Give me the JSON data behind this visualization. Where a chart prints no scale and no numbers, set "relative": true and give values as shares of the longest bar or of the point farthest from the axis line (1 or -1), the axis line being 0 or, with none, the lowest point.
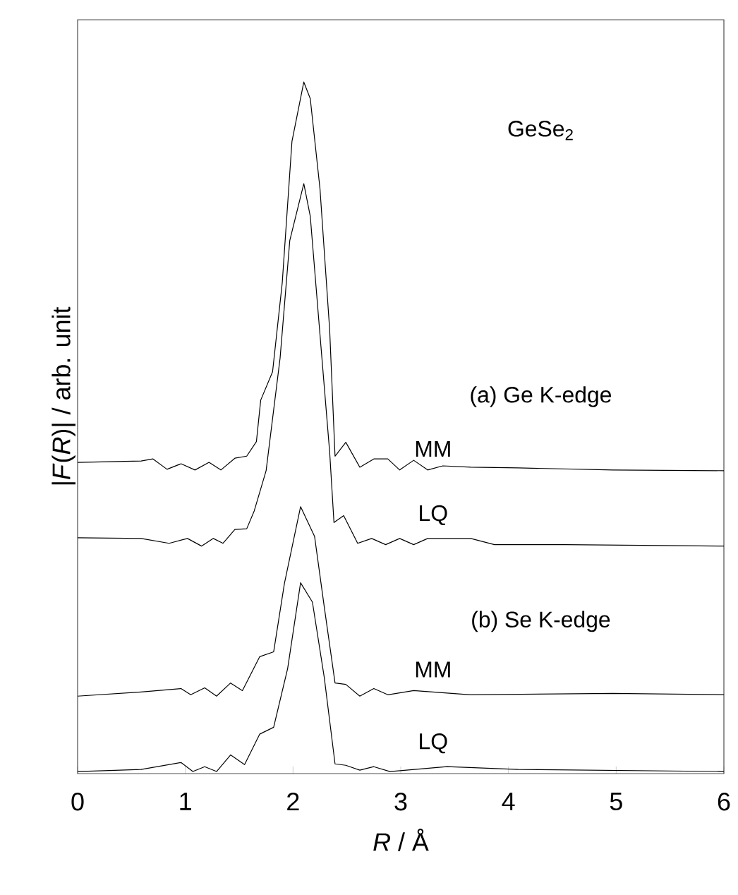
{
  "chart_data": {
    "type": "line",
    "relative": true,
    "xlabel": "*R* / Å",
    "ylabel": "|*F*(*R*)| / arb. unit",
    "xlim": [
      0,
      6
    ],
    "xticks": [
      0,
      1,
      2,
      3,
      4,
      5,
      6
    ],
    "marker": "none",
    "line_style": "solid",
    "annotations": [
      "GeSe$_{2}$",
      "(a) Ge K-edge",
      "(b) Se K-edge"
    ],
    "series": [
      {
        "name": "MM",
        "color": "#000000",
        "x": [
          0,
          0.59,
          0.7,
          0.83,
          0.96,
          1.09,
          1.22,
          1.33,
          1.46,
          1.57,
          1.66,
          1.7,
          1.81,
          1.9,
          1.99,
          2.1,
          2.16,
          2.25,
          2.34,
          2.39,
          2.49,
          2.62,
          2.75,
          2.88,
          2.99,
          3.12,
          3.25,
          3.39,
          3.65,
          4.09,
          4.97,
          6
        ],
        "values": [
          0.45,
          0.452,
          0.455,
          0.44,
          0.448,
          0.439,
          0.45,
          0.439,
          0.456,
          0.459,
          0.48,
          0.54,
          0.581,
          0.71,
          0.914,
          1,
          0.976,
          0.846,
          0.642,
          0.459,
          0.479,
          0.443,
          0.455,
          0.455,
          0.439,
          0.453,
          0.439,
          0.445,
          0.443,
          0.442,
          0.439,
          0.438
        ]
      },
      {
        "name": "LQ",
        "color": "#000000",
        "x": [
          0,
          0.59,
          0.85,
          1.02,
          1.15,
          1.26,
          1.35,
          1.46,
          1.57,
          1.64,
          1.75,
          1.88,
          1.97,
          2.1,
          2.16,
          2.25,
          2.34,
          2.38,
          2.47,
          2.6,
          2.73,
          2.86,
          2.99,
          3.12,
          3.25,
          3.65,
          3.87,
          4.53,
          6
        ],
        "values": [
          0.341,
          0.34,
          0.333,
          0.34,
          0.329,
          0.34,
          0.333,
          0.353,
          0.354,
          0.38,
          0.438,
          0.601,
          0.771,
          0.853,
          0.806,
          0.635,
          0.465,
          0.363,
          0.373,
          0.333,
          0.34,
          0.331,
          0.34,
          0.331,
          0.34,
          0.34,
          0.331,
          0.331,
          0.329
        ]
      },
      {
        "name": "MM",
        "color": "#000000",
        "x": [
          0,
          0.59,
          0.96,
          1.05,
          1.18,
          1.29,
          1.42,
          1.53,
          1.69,
          1.82,
          1.92,
          2.07,
          2.2,
          2.29,
          2.39,
          2.49,
          2.62,
          2.75,
          2.88,
          3.12,
          3.65,
          4.97,
          6
        ],
        "values": [
          0.112,
          0.118,
          0.123,
          0.114,
          0.124,
          0.112,
          0.131,
          0.12,
          0.169,
          0.176,
          0.275,
          0.386,
          0.343,
          0.241,
          0.131,
          0.129,
          0.112,
          0.123,
          0.114,
          0.12,
          0.114,
          0.116,
          0.114
        ]
      },
      {
        "name": "LQ",
        "color": "#000000",
        "x": [
          0,
          0.59,
          0.96,
          1.07,
          1.18,
          1.29,
          1.42,
          1.55,
          1.69,
          1.82,
          1.95,
          2.07,
          2.18,
          2.29,
          2.39,
          2.49,
          2.62,
          2.75,
          2.9,
          3.43,
          4.09,
          6
        ],
        "values": [
          0.003,
          0.006,
          0.016,
          0.003,
          0.01,
          0.003,
          0.027,
          0.013,
          0.057,
          0.067,
          0.152,
          0.276,
          0.248,
          0.139,
          0.014,
          0.012,
          0.005,
          0.01,
          0.003,
          0.01,
          0.006,
          0.003
        ]
      }
    ]
  }
}
